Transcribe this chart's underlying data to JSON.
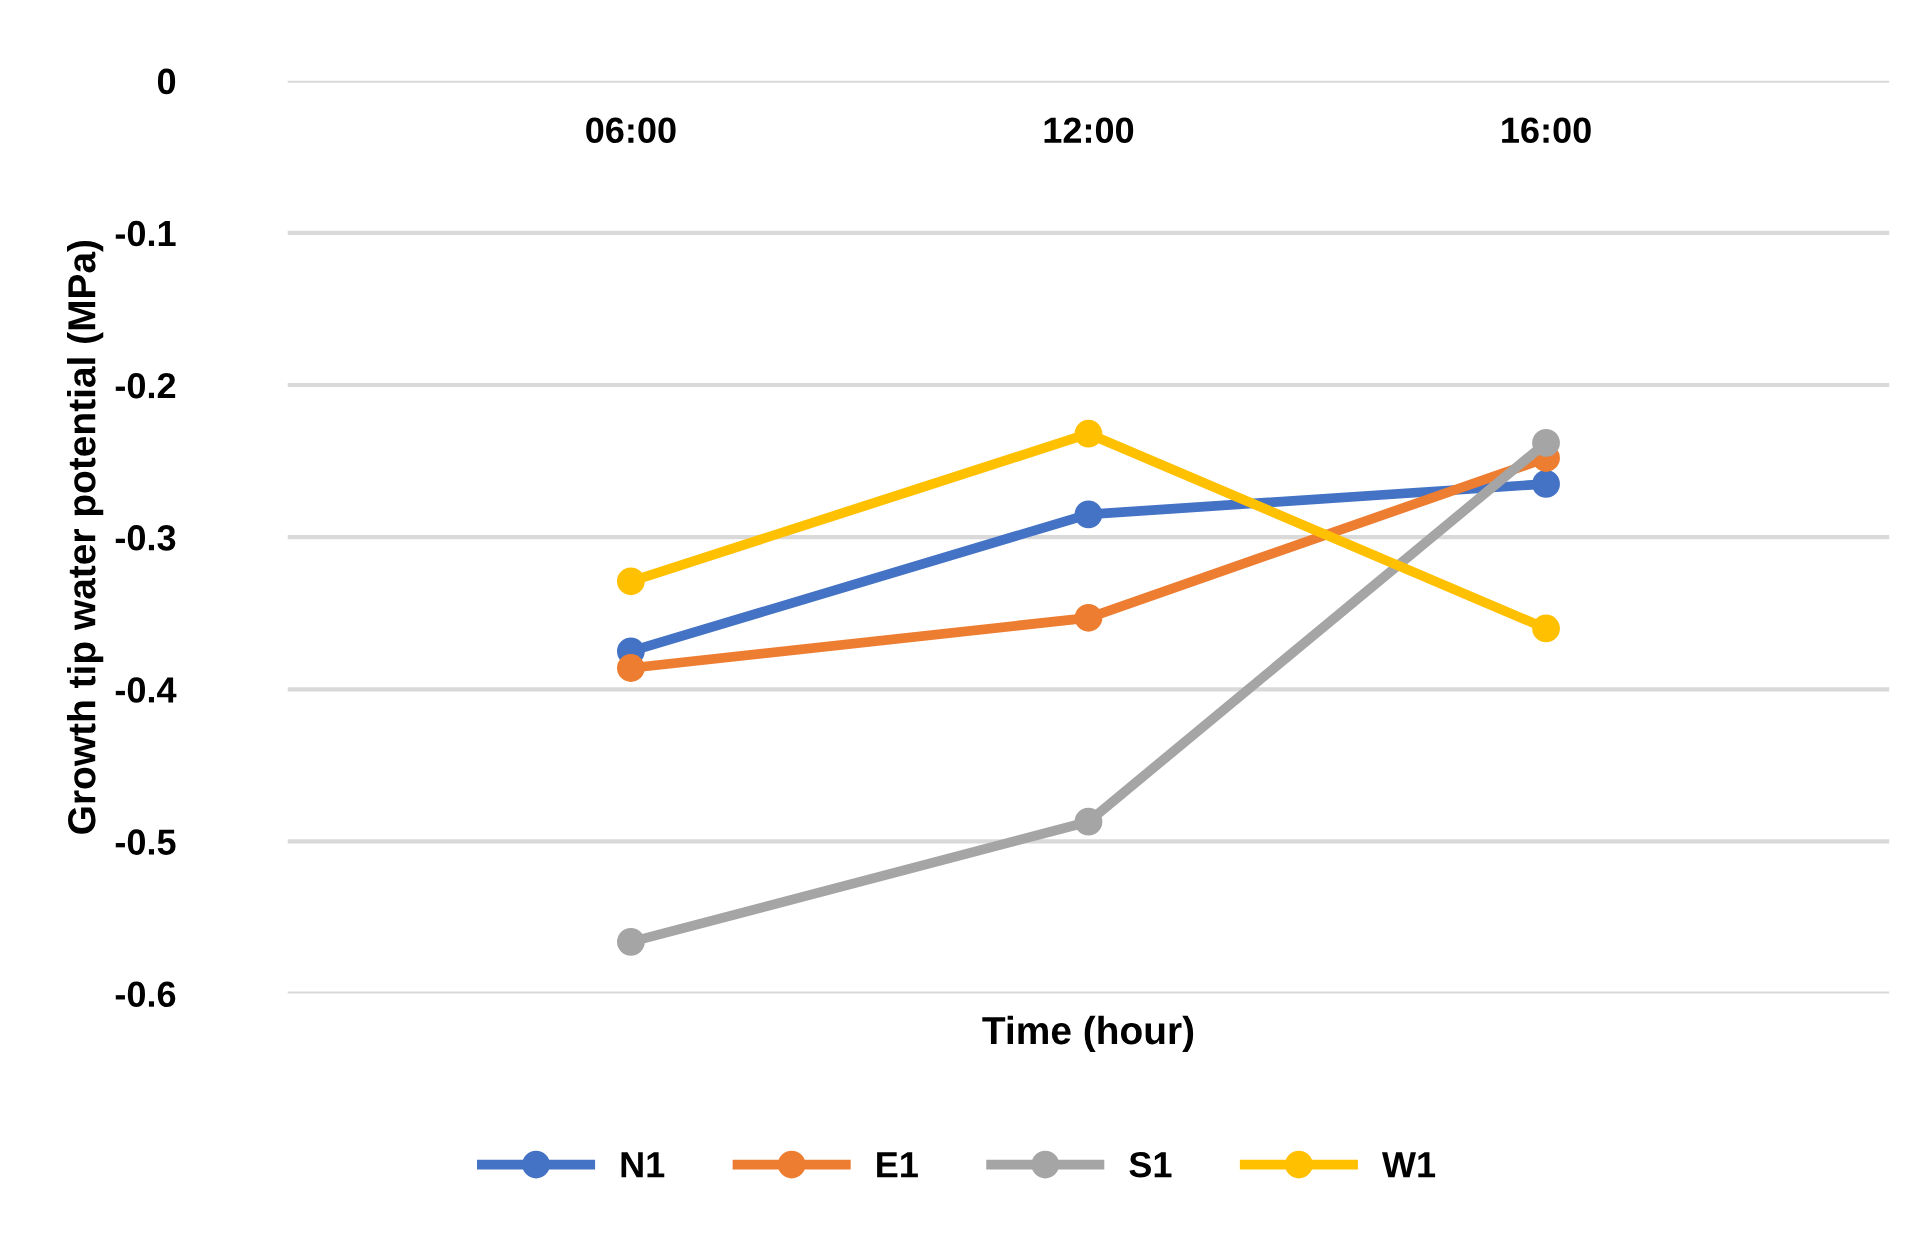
{
  "chart_data": {
    "type": "line",
    "xlabel": "Time (hour)",
    "ylabel": "Growth tip water potential (MPa)",
    "categories": [
      "06:00",
      "12:00",
      "16:00"
    ],
    "series": [
      {
        "name": "N1",
        "color": "#4472c4",
        "values": [
          -0.375,
          -0.285,
          -0.265
        ]
      },
      {
        "name": "E1",
        "color": "#ed7d31",
        "values": [
          -0.386,
          -0.353,
          -0.248
        ]
      },
      {
        "name": "S1",
        "color": "#a5a5a5",
        "values": [
          -0.566,
          -0.487,
          -0.238
        ]
      },
      {
        "name": "W1",
        "color": "#ffc000",
        "values": [
          -0.329,
          -0.232,
          -0.36
        ]
      }
    ],
    "ylim": [
      -0.6,
      0
    ],
    "yticks": [
      -0.6,
      -0.5,
      -0.4,
      -0.3,
      -0.2,
      -0.1,
      0
    ],
    "grid": "y",
    "legend": "bottom",
    "marker": "circle",
    "line_style": "solid"
  }
}
